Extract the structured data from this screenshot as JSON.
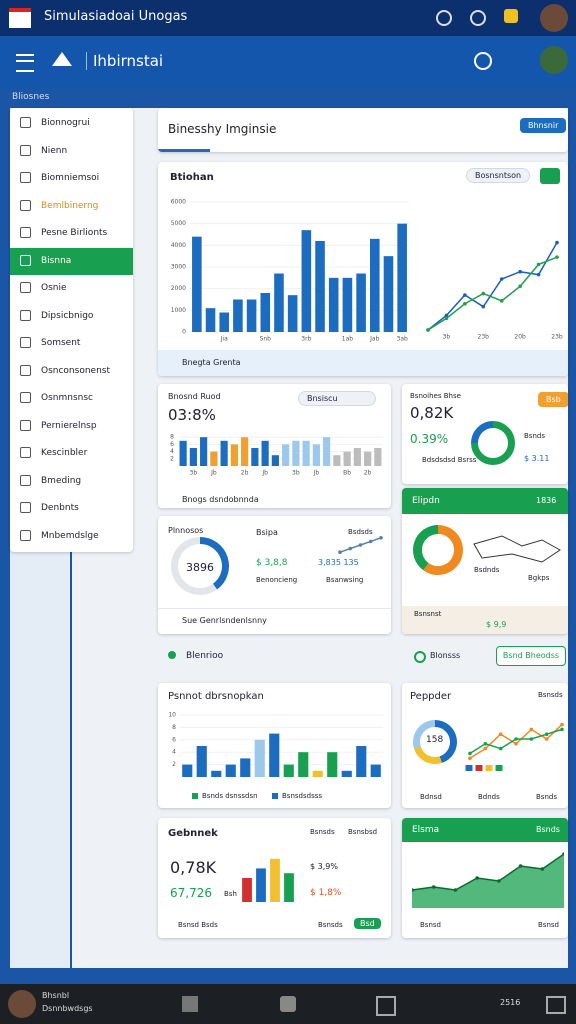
{
  "topbar": {
    "title": "Simulasiadoai Unogas"
  },
  "navbar": {
    "title": "Ihbirnstai"
  },
  "breadcrumb": "Bliosnes",
  "sidebar": {
    "items": [
      "Bionnogrui",
      "Nienn",
      "Biomniemsoi",
      "Bemlbinerng",
      "Pesne Birlionts",
      "Bisnna",
      "Osnie",
      "Dipsicbnigo",
      "Somsent",
      "Osnconsonenst",
      "Osnmnsnsc",
      "Pernierelnsp",
      "Kescinbler",
      "Bmeding",
      "Denbnts",
      "Mnbemdslge"
    ]
  },
  "header": {
    "title": "Binesshy Imginsie",
    "button": "Bhnsnir"
  },
  "overview": {
    "title": "Btiohan",
    "filter": "Bosnsntson",
    "footer": "Bnegta Grenta",
    "bar_chart": {
      "type": "bar",
      "color": "#1c6cc0",
      "ylim": [
        0,
        6000
      ],
      "yticks": [
        0,
        1000,
        2000,
        3000,
        4000,
        5000,
        6000
      ],
      "categories": [
        null,
        null,
        "Jia",
        null,
        null,
        "Snb",
        null,
        null,
        "3rb",
        null,
        null,
        "1ab",
        null,
        "Jab",
        null,
        "3ab"
      ],
      "values": [
        4400,
        1100,
        900,
        1500,
        1500,
        1800,
        2700,
        1700,
        4700,
        4200,
        2500,
        2500,
        2700,
        4300,
        3500,
        5000
      ]
    },
    "line_chart": {
      "type": "line",
      "ylim": [
        0,
        7
      ],
      "categories": [
        null,
        "3b",
        null,
        "23b",
        null,
        "20b",
        null,
        "23b"
      ],
      "series": [
        {
          "color": "#1c5fb8",
          "values": [
            0,
            1,
            2.4,
            1.6,
            3.5,
            4,
            3.8,
            6
          ]
        },
        {
          "color": "#22a04a",
          "values": [
            0,
            0.8,
            1.8,
            2.5,
            2,
            3,
            4.5,
            5
          ]
        }
      ]
    }
  },
  "stats": {
    "title": "Bnosnd Ruod",
    "search": "Bnsiscu",
    "value": "03:8%",
    "footer": "Bnogs dsndobnnda",
    "chart": {
      "type": "bar",
      "ylim": [
        0,
        10
      ],
      "yticks": [
        2,
        4,
        6,
        8
      ],
      "categories": [
        null,
        "3b",
        null,
        "Jb",
        null,
        null,
        "2b",
        null,
        "Jb",
        null,
        null,
        "3b",
        null,
        "Jb",
        null,
        null,
        "Bb",
        null,
        "2b",
        null
      ],
      "values": [
        7,
        5,
        8,
        4,
        7,
        6,
        8,
        5,
        7,
        3,
        6,
        7,
        7,
        6,
        8,
        3,
        4,
        5,
        4,
        5
      ],
      "colors": [
        "#1c6cc0",
        "#1c6cc0",
        "#1c6cc0",
        "#f0a030",
        "#1c6cc0",
        "#f0a030",
        "#f0a030",
        "#1c6cc0",
        "#1c6cc0",
        "#1c6cc0",
        "#9cc8ec",
        "#9cc8ec",
        "#9cc8ec",
        "#9cc8ec",
        "#9cc8ec",
        "#bcbcbc",
        "#bcbcbc",
        "#bcbcbc",
        "#bcbcbc",
        "#bcbcbc"
      ]
    }
  },
  "donut_card": {
    "title": "Plnnosos",
    "center": "3896",
    "footer": "Sue Genrlsndenlsnny",
    "donut": {
      "type": "pie",
      "values": [
        40,
        60
      ],
      "colors": [
        "#1c6cc0",
        "#e2e6ea"
      ]
    },
    "labels": [
      "Bsipa",
      "$ 3,8,8",
      "Benoncieng",
      "Bsdsds",
      "3,835 135",
      "Bsanwsing"
    ],
    "spark": {
      "type": "line",
      "ylim": [
        0,
        10
      ],
      "series": [
        {
          "color": "#5a7fa8",
          "values": [
            1,
            3,
            5,
            7,
            9
          ]
        }
      ]
    }
  },
  "kpi_card": {
    "title": "Bsnoihes Bhse",
    "badge": "Bsb",
    "value": "0,82K",
    "percent": "0.39%",
    "legend": "Bdsdsdsd Bsrss",
    "side": [
      "Bsnds",
      "$ 3.11"
    ],
    "donut": {
      "type": "pie",
      "values": [
        75,
        25
      ],
      "colors": [
        "#18a050",
        "#1c6cc0"
      ]
    }
  },
  "green_card": {
    "title": "Elipdn",
    "badge": "1836",
    "labels": [
      "Bsdnds",
      "Bgkps"
    ],
    "footer": [
      "Bsnsnst",
      "$ 9,9"
    ],
    "donut": {
      "type": "pie",
      "values": [
        60,
        40
      ],
      "colors": [
        "#f08a20",
        "#18a050"
      ]
    }
  },
  "section": {
    "title": "Blenrioo",
    "toggle": "Blonsss",
    "button": "Bsnd Bheodss"
  },
  "bars_card": {
    "title": "Psnnot dbrsnopkan",
    "legend": [
      "Bsnds dsnssdsn",
      "Bsnsdsdsss"
    ],
    "chart": {
      "type": "bar",
      "ylim": [
        0,
        10
      ],
      "yticks": [
        2,
        4,
        6,
        8,
        10
      ],
      "values": [
        2,
        5,
        1,
        2,
        3,
        6,
        7,
        2,
        4,
        1,
        4,
        1,
        5,
        2
      ],
      "colors": [
        "#1c6cc0",
        "#1c6cc0",
        "#1c6cc0",
        "#1c6cc0",
        "#1c6cc0",
        "#9cc8ec",
        "#1c6cc0",
        "#18a050",
        "#18a050",
        "#f0c030",
        "#18a050",
        "#1c6cc0",
        "#1c6cc0",
        "#1c6cc0"
      ]
    }
  },
  "people_card": {
    "title": "Peppder",
    "badge": "Bsnsds",
    "center": "158",
    "legend": [
      "Bdnsd",
      "Bdnds",
      "Bsnds"
    ],
    "donut": {
      "type": "pie",
      "values": [
        45,
        25,
        30
      ],
      "colors": [
        "#1c6cc0",
        "#f0c030",
        "#9cc8ec"
      ]
    },
    "mini": {
      "type": "bar",
      "ylim": [
        0,
        10
      ],
      "values": [
        5,
        5,
        5,
        5
      ],
      "colors": [
        "#1c6cc0",
        "#d03030",
        "#f0c030",
        "#18a050"
      ]
    },
    "line": {
      "type": "line",
      "ylim": [
        0,
        10
      ],
      "series": [
        {
          "color": "#f08a20",
          "values": [
            1,
            3,
            6,
            4,
            7,
            5,
            8
          ]
        },
        {
          "color": "#18a050",
          "values": [
            2,
            4,
            3,
            5,
            5,
            6,
            7
          ]
        }
      ]
    }
  },
  "sales_card": {
    "title": "Gebnnek",
    "tabs": [
      "Bsnsds",
      "Bsnsbsd"
    ],
    "value": "0,78K",
    "change": "67,726",
    "unit": "Bsh",
    "side": [
      "$ 3,9%",
      "$ 1,8%"
    ],
    "footer": [
      "Bsnsd Bsds",
      "Bsnsds"
    ],
    "button": "Bsd",
    "chart": {
      "type": "bar",
      "ylim": [
        0,
        10
      ],
      "values": [
        5,
        7,
        9,
        6
      ],
      "colors": [
        "#d03030",
        "#1c6cc0",
        "#f0c030",
        "#18a050"
      ]
    }
  },
  "area_card": {
    "title": "Elsma",
    "badge": "Bsnds",
    "footer": [
      "Bsnsd",
      "Bsnsd"
    ],
    "chart": {
      "type": "area",
      "ylim": [
        0,
        10
      ],
      "series": [
        {
          "color": "#18a050",
          "values": [
            3,
            3.5,
            3,
            5,
            4.5,
            7,
            6.5,
            9
          ]
        }
      ]
    }
  },
  "taskbar": {
    "user": "Bhsnbl",
    "subtitle": "Dsnnbwdsgs",
    "time": "2516"
  }
}
